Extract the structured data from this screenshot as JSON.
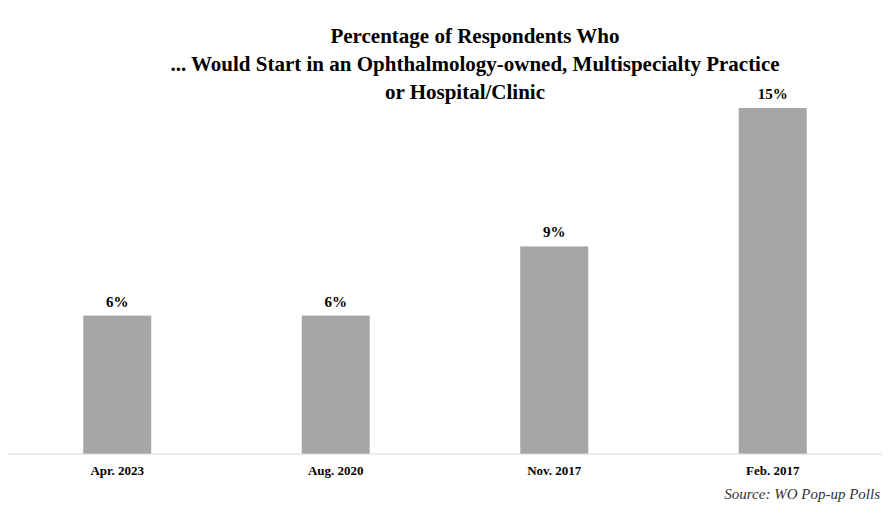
{
  "chart_data": {
    "type": "bar",
    "title": [
      "Percentage of Respondents Who",
      "... Would Start in an Ophthalmology-owned, Multispecialty Practice",
      "or Hospital/Clinic"
    ],
    "categories": [
      "Apr. 2023",
      "Aug. 2020",
      "Nov. 2017",
      "Feb. 2017"
    ],
    "values": [
      6,
      6,
      9,
      15
    ],
    "value_labels": [
      "6%",
      "6%",
      "9%",
      "15%"
    ],
    "data_labels": true,
    "color": "#a6a6a6",
    "ylim": [
      0,
      15
    ],
    "tick_labels": "x",
    "grid": false,
    "source": "Source: WO Pop-up Polls"
  }
}
